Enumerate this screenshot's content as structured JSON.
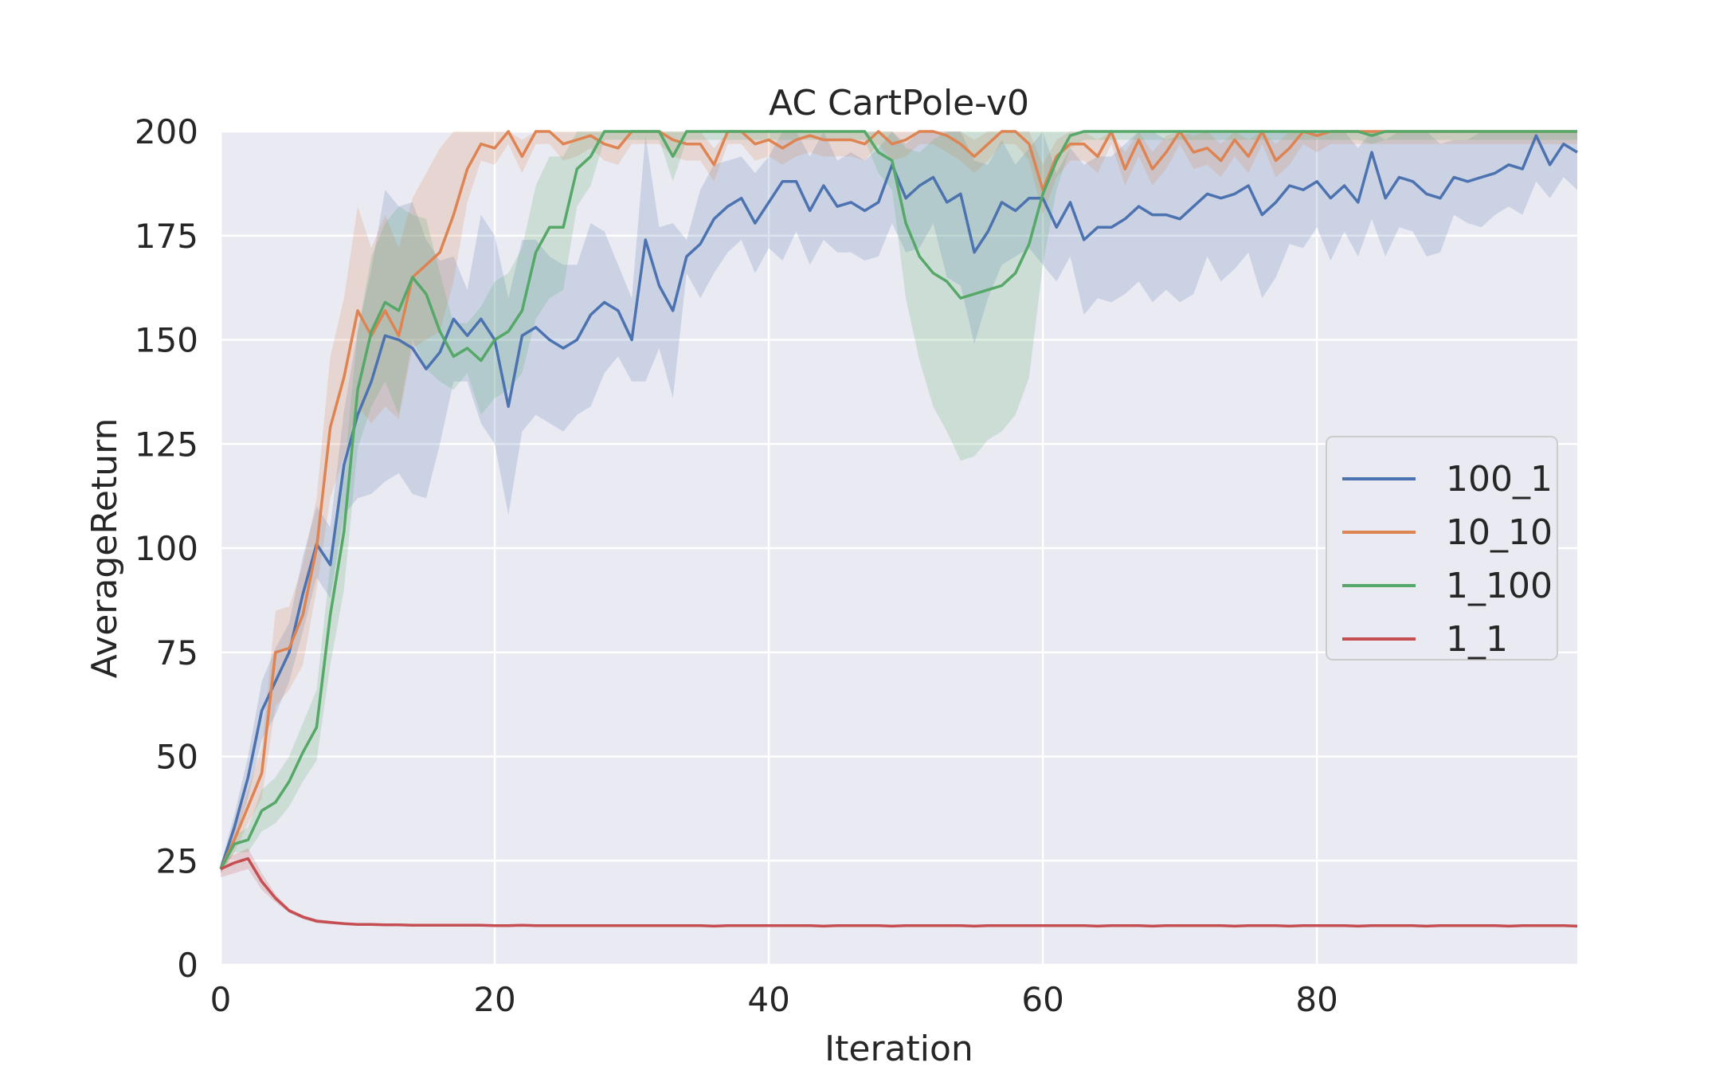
{
  "chart_data": {
    "type": "line",
    "title": "AC CartPole-v0",
    "xlabel": "Iteration",
    "ylabel": "AverageReturn",
    "xlim": [
      0,
      99
    ],
    "ylim": [
      0,
      200
    ],
    "xticks": [
      0,
      20,
      40,
      60,
      80
    ],
    "yticks": [
      0,
      25,
      50,
      75,
      100,
      125,
      150,
      175,
      200
    ],
    "grid": true,
    "background": "#eaeaf2",
    "legend_position": "center-right",
    "series": [
      {
        "name": "100_1",
        "color": "#4c72b0",
        "values": [
          23,
          33,
          45,
          61,
          68,
          75,
          89,
          101,
          96,
          120,
          132,
          140,
          151,
          150,
          148,
          143,
          147,
          155,
          151,
          155,
          150,
          134,
          151,
          153,
          150,
          148,
          150,
          156,
          159,
          157,
          150,
          174,
          163,
          157,
          170,
          173,
          179,
          182,
          184,
          178,
          183,
          188,
          188,
          181,
          187,
          182,
          183,
          181,
          183,
          192,
          184,
          187,
          189,
          183,
          185,
          171,
          176,
          183,
          181,
          184,
          184,
          177,
          183,
          174,
          177,
          177,
          179,
          182,
          180,
          180,
          179,
          182,
          185,
          184,
          185,
          187,
          180,
          183,
          187,
          186,
          188,
          184,
          187,
          183,
          195,
          184,
          189,
          188,
          185,
          184,
          189,
          188,
          189,
          190,
          192,
          191,
          199,
          192,
          197,
          195
        ],
        "band_low": [
          22,
          30,
          40,
          54,
          60,
          68,
          80,
          93,
          88,
          108,
          112,
          113,
          116,
          118,
          113,
          112,
          125,
          140,
          140,
          130,
          125,
          108,
          128,
          132,
          130,
          128,
          132,
          134,
          142,
          146,
          140,
          140,
          148,
          136,
          166,
          160,
          166,
          171,
          174,
          166,
          172,
          169,
          176,
          168,
          174,
          171,
          171,
          169,
          170,
          178,
          171,
          172,
          178,
          165,
          163,
          149,
          160,
          168,
          170,
          172,
          168,
          164,
          170,
          156,
          160,
          159,
          161,
          164,
          159,
          162,
          159,
          161,
          170,
          164,
          167,
          171,
          160,
          165,
          173,
          172,
          177,
          169,
          176,
          170,
          179,
          170,
          177,
          176,
          170,
          171,
          180,
          178,
          177,
          180,
          182,
          180,
          188,
          184,
          189,
          186
        ],
        "band_high": [
          24,
          36,
          50,
          68,
          76,
          82,
          98,
          110,
          105,
          133,
          152,
          167,
          186,
          182,
          183,
          174,
          169,
          170,
          162,
          180,
          175,
          160,
          174,
          174,
          170,
          168,
          168,
          178,
          176,
          168,
          160,
          199,
          177,
          178,
          174,
          186,
          192,
          193,
          194,
          190,
          194,
          200,
          200,
          194,
          200,
          193,
          195,
          193,
          196,
          200,
          197,
          200,
          200,
          200,
          200,
          193,
          192,
          198,
          192,
          196,
          200,
          190,
          196,
          192,
          194,
          194,
          197,
          200,
          200,
          198,
          199,
          200,
          200,
          200,
          200,
          200,
          200,
          200,
          200,
          200,
          200,
          200,
          200,
          196,
          200,
          198,
          200,
          200,
          200,
          197,
          198,
          198,
          200,
          200,
          200,
          200,
          200,
          200,
          200,
          200
        ]
      },
      {
        "name": "10_10",
        "color": "#dd8452",
        "values": [
          23,
          30,
          38,
          46,
          75,
          76,
          84,
          100,
          129,
          141,
          157,
          151,
          157,
          151,
          165,
          168,
          171,
          180,
          191,
          197,
          196,
          200,
          194,
          200,
          200,
          197,
          198,
          199,
          197,
          196,
          200,
          200,
          200,
          198,
          197,
          197,
          192,
          200,
          200,
          197,
          198,
          196,
          198,
          199,
          198,
          198,
          198,
          197,
          200,
          197,
          198,
          200,
          200,
          199,
          197,
          194,
          197,
          200,
          200,
          197,
          186,
          194,
          197,
          197,
          194,
          200,
          191,
          198,
          191,
          195,
          200,
          195,
          196,
          193,
          198,
          194,
          200,
          193,
          196,
          200,
          199,
          200,
          200,
          200,
          200,
          200,
          200,
          200,
          200,
          200,
          200,
          200,
          200,
          200,
          200,
          200,
          200,
          200,
          200,
          200
        ],
        "band_low": [
          22,
          27,
          34,
          40,
          62,
          66,
          72,
          90,
          112,
          122,
          134,
          130,
          134,
          131,
          148,
          150,
          152,
          164,
          183,
          193,
          192,
          197,
          190,
          197,
          197,
          193,
          194,
          196,
          193,
          192,
          197,
          197,
          197,
          194,
          193,
          193,
          188,
          197,
          197,
          193,
          194,
          192,
          194,
          195,
          194,
          194,
          194,
          193,
          197,
          193,
          194,
          197,
          197,
          195,
          193,
          190,
          193,
          197,
          197,
          193,
          180,
          189,
          193,
          193,
          190,
          197,
          187,
          194,
          187,
          191,
          197,
          191,
          192,
          189,
          194,
          190,
          197,
          189,
          192,
          197,
          195,
          197,
          197,
          197,
          197,
          197,
          197,
          197,
          197,
          197,
          197,
          197,
          197,
          197,
          197,
          197,
          197,
          197,
          197,
          197
        ],
        "band_high": [
          24,
          33,
          42,
          52,
          85,
          86,
          96,
          112,
          146,
          160,
          182,
          172,
          180,
          172,
          184,
          190,
          196,
          200,
          200,
          200,
          200,
          200,
          198,
          200,
          200,
          200,
          200,
          200,
          200,
          200,
          200,
          200,
          200,
          200,
          200,
          200,
          196,
          200,
          200,
          200,
          200,
          200,
          200,
          200,
          200,
          200,
          200,
          200,
          200,
          200,
          200,
          200,
          200,
          200,
          200,
          198,
          200,
          200,
          200,
          200,
          192,
          198,
          200,
          200,
          198,
          200,
          195,
          200,
          195,
          199,
          200,
          199,
          200,
          197,
          200,
          198,
          200,
          197,
          200,
          200,
          200,
          200,
          200,
          200,
          200,
          200,
          200,
          200,
          200,
          200,
          200,
          200,
          200,
          200,
          200,
          200,
          200,
          200,
          200,
          200
        ]
      },
      {
        "name": "1_100",
        "color": "#55a868",
        "values": [
          23,
          29,
          30,
          37,
          39,
          44,
          51,
          57,
          84,
          104,
          138,
          152,
          159,
          157,
          165,
          161,
          152,
          146,
          148,
          145,
          150,
          152,
          157,
          171,
          177,
          177,
          191,
          194,
          200,
          200,
          200,
          200,
          200,
          194,
          200,
          200,
          200,
          200,
          200,
          200,
          200,
          200,
          200,
          200,
          200,
          200,
          200,
          200,
          195,
          193,
          178,
          170,
          166,
          164,
          160,
          161,
          162,
          163,
          166,
          173,
          185,
          193,
          199,
          200,
          200,
          200,
          200,
          200,
          200,
          200,
          200,
          200,
          200,
          200,
          200,
          200,
          200,
          200,
          200,
          200,
          200,
          200,
          200,
          200,
          199,
          200,
          200,
          200,
          200,
          200,
          200,
          200,
          200,
          200,
          200,
          200,
          200,
          200,
          200,
          200
        ],
        "band_low": [
          22,
          27,
          27,
          32,
          34,
          38,
          44,
          49,
          72,
          90,
          124,
          134,
          140,
          132,
          150,
          143,
          140,
          138,
          142,
          132,
          136,
          138,
          142,
          155,
          160,
          162,
          182,
          187,
          198,
          198,
          198,
          198,
          198,
          188,
          198,
          198,
          198,
          198,
          198,
          198,
          198,
          198,
          198,
          198,
          198,
          198,
          198,
          198,
          190,
          186,
          160,
          145,
          134,
          128,
          121,
          122,
          126,
          128,
          132,
          141,
          168,
          186,
          196,
          198,
          198,
          198,
          198,
          198,
          198,
          198,
          198,
          198,
          198,
          198,
          198,
          198,
          198,
          198,
          198,
          198,
          198,
          198,
          198,
          198,
          197,
          198,
          198,
          198,
          198,
          198,
          198,
          198,
          198,
          198,
          198,
          198,
          198,
          198,
          198,
          198
        ],
        "band_high": [
          24,
          31,
          33,
          42,
          45,
          50,
          58,
          66,
          96,
          118,
          152,
          170,
          178,
          182,
          180,
          179,
          166,
          154,
          154,
          158,
          164,
          166,
          172,
          187,
          194,
          194,
          200,
          200,
          200,
          200,
          200,
          200,
          200,
          200,
          200,
          200,
          200,
          200,
          200,
          200,
          200,
          200,
          200,
          200,
          200,
          200,
          200,
          200,
          200,
          200,
          196,
          195,
          198,
          200,
          200,
          200,
          200,
          200,
          200,
          200,
          200,
          200,
          200,
          200,
          200,
          200,
          200,
          200,
          200,
          200,
          200,
          200,
          200,
          200,
          200,
          200,
          200,
          200,
          200,
          200,
          200,
          200,
          200,
          200,
          200,
          200,
          200,
          200,
          200,
          200,
          200,
          200,
          200,
          200,
          200,
          200,
          200,
          200,
          200,
          200
        ]
      },
      {
        "name": "1_1",
        "color": "#c44e52",
        "values": [
          23,
          24.5,
          25.5,
          20,
          16,
          13,
          11.5,
          10.5,
          10.2,
          9.9,
          9.7,
          9.7,
          9.6,
          9.6,
          9.5,
          9.5,
          9.5,
          9.5,
          9.5,
          9.5,
          9.4,
          9.4,
          9.5,
          9.4,
          9.4,
          9.4,
          9.4,
          9.4,
          9.4,
          9.4,
          9.4,
          9.4,
          9.4,
          9.4,
          9.4,
          9.4,
          9.3,
          9.4,
          9.4,
          9.4,
          9.4,
          9.4,
          9.4,
          9.4,
          9.3,
          9.4,
          9.4,
          9.4,
          9.4,
          9.3,
          9.4,
          9.4,
          9.4,
          9.4,
          9.4,
          9.3,
          9.4,
          9.4,
          9.4,
          9.4,
          9.4,
          9.4,
          9.4,
          9.4,
          9.3,
          9.4,
          9.4,
          9.4,
          9.3,
          9.4,
          9.4,
          9.4,
          9.4,
          9.4,
          9.3,
          9.4,
          9.4,
          9.4,
          9.3,
          9.4,
          9.4,
          9.4,
          9.4,
          9.3,
          9.4,
          9.4,
          9.4,
          9.4,
          9.3,
          9.4,
          9.4,
          9.4,
          9.4,
          9.4,
          9.3,
          9.4,
          9.4,
          9.4,
          9.4,
          9.3
        ],
        "band_low": [
          21,
          22,
          23,
          18,
          15,
          12.5,
          11,
          10,
          9.8,
          9.6,
          9.5,
          9.5,
          9.4,
          9.4,
          9.3,
          9.3,
          9.3,
          9.3,
          9.3,
          9.3,
          9.2,
          9.2,
          9.3,
          9.2,
          9.2,
          9.2,
          9.2,
          9.2,
          9.2,
          9.2,
          9.2,
          9.2,
          9.2,
          9.2,
          9.2,
          9.2,
          9.1,
          9.2,
          9.2,
          9.2,
          9.2,
          9.2,
          9.2,
          9.2,
          9.1,
          9.2,
          9.2,
          9.2,
          9.2,
          9.1,
          9.2,
          9.2,
          9.2,
          9.2,
          9.2,
          9.1,
          9.2,
          9.2,
          9.2,
          9.2,
          9.2,
          9.2,
          9.2,
          9.2,
          9.1,
          9.2,
          9.2,
          9.2,
          9.1,
          9.2,
          9.2,
          9.2,
          9.2,
          9.2,
          9.1,
          9.2,
          9.2,
          9.2,
          9.1,
          9.2,
          9.2,
          9.2,
          9.2,
          9.1,
          9.2,
          9.2,
          9.2,
          9.2,
          9.1,
          9.2,
          9.2,
          9.2,
          9.2,
          9.2,
          9.1,
          9.2,
          9.2,
          9.2,
          9.2,
          9.1
        ],
        "band_high": [
          25,
          26.5,
          28,
          22,
          17,
          13.5,
          12,
          11,
          10.6,
          10.2,
          9.9,
          9.9,
          9.8,
          9.8,
          9.7,
          9.7,
          9.7,
          9.7,
          9.7,
          9.7,
          9.6,
          9.6,
          9.7,
          9.6,
          9.6,
          9.6,
          9.6,
          9.6,
          9.6,
          9.6,
          9.6,
          9.6,
          9.6,
          9.6,
          9.6,
          9.6,
          9.5,
          9.6,
          9.6,
          9.6,
          9.6,
          9.6,
          9.6,
          9.6,
          9.5,
          9.6,
          9.6,
          9.6,
          9.6,
          9.5,
          9.6,
          9.6,
          9.6,
          9.6,
          9.6,
          9.5,
          9.6,
          9.6,
          9.6,
          9.6,
          9.6,
          9.6,
          9.6,
          9.6,
          9.5,
          9.6,
          9.6,
          9.6,
          9.5,
          9.6,
          9.6,
          9.6,
          9.6,
          9.6,
          9.5,
          9.6,
          9.6,
          9.6,
          9.5,
          9.6,
          9.6,
          9.6,
          9.6,
          9.5,
          9.6,
          9.6,
          9.6,
          9.6,
          9.5,
          9.6,
          9.6,
          9.6,
          9.6,
          9.6,
          9.5,
          9.6,
          9.6,
          9.6,
          9.6,
          9.5
        ]
      }
    ]
  }
}
